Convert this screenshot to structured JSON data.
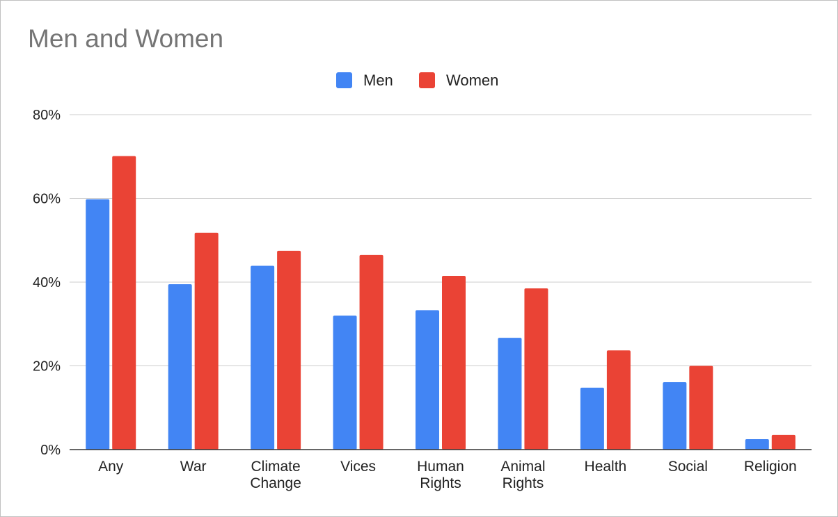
{
  "chart_data": {
    "type": "bar",
    "title": "Men and Women",
    "xlabel": "",
    "ylabel": "",
    "categories": [
      [
        "Any"
      ],
      [
        "War"
      ],
      [
        "Climate",
        "Change"
      ],
      [
        "Vices"
      ],
      [
        "Human",
        "Rights"
      ],
      [
        "Animal",
        "Rights"
      ],
      [
        "Health"
      ],
      [
        "Social"
      ],
      [
        "Religion"
      ]
    ],
    "series": [
      {
        "name": "Men",
        "color": "#4285f4",
        "values": [
          59.8,
          39.5,
          43.9,
          32.0,
          33.3,
          26.7,
          14.8,
          16.1,
          2.5
        ]
      },
      {
        "name": "Women",
        "color": "#ea4335",
        "values": [
          70.1,
          51.8,
          47.5,
          46.5,
          41.5,
          38.5,
          23.7,
          20.0,
          3.5
        ]
      }
    ],
    "ylim": [
      0,
      80
    ],
    "yticks": [
      0,
      20,
      40,
      60,
      80
    ],
    "ytick_suffix": "%",
    "grid": true,
    "legend": "top-center"
  }
}
